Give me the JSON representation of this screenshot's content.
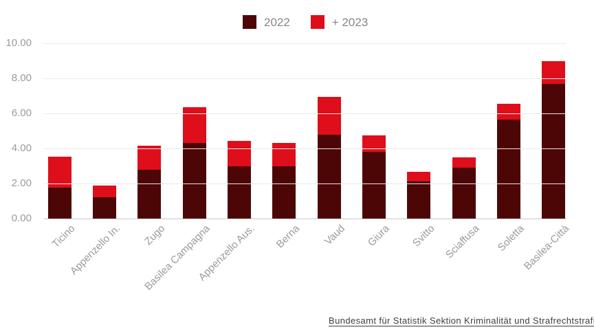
{
  "colors": {
    "series_2022": "#4d0606",
    "series_2023": "#de0e1b",
    "gridline": "#e9e9e9",
    "baseline": "#c6c6c6",
    "axis_text": "#9a9a9a",
    "legend_text": "#868686",
    "footer_text": "#3d3d3d"
  },
  "legend": {
    "items": [
      {
        "label": "2022",
        "color": "#4d0606"
      },
      {
        "label": "+ 2023",
        "color": "#de0e1b"
      }
    ]
  },
  "chart_data": {
    "type": "bar",
    "stacked": true,
    "title": "",
    "xlabel": "",
    "ylabel": "",
    "ylim": [
      0,
      10
    ],
    "grid": true,
    "legend_position": "top-center",
    "yticks": [
      "0.00",
      "2.00",
      "4.00",
      "6.00",
      "8.00",
      "10.00"
    ],
    "categories": [
      "Ticino",
      "Appenzello In.",
      "Zugo",
      "Basilea Campagna",
      "Appenzello Aus.",
      "Berna",
      "Vaud",
      "Giura",
      "Svitto",
      "Sciaffusa",
      "Soletta",
      "Basilea-Città"
    ],
    "series": [
      {
        "name": "2022",
        "color": "#4d0606",
        "values": [
          1.75,
          1.2,
          2.8,
          4.3,
          3.0,
          3.0,
          4.8,
          3.8,
          2.1,
          2.9,
          5.65,
          7.7
        ]
      },
      {
        "name": "+ 2023",
        "color": "#de0e1b",
        "values": [
          1.8,
          0.7,
          1.35,
          2.05,
          1.45,
          1.3,
          2.15,
          0.95,
          0.55,
          0.6,
          0.9,
          1.3
        ]
      }
    ],
    "totals": [
      3.55,
      1.9,
      4.15,
      6.35,
      4.45,
      4.3,
      6.95,
      4.75,
      2.65,
      3.5,
      6.55,
      9.0
    ]
  },
  "footer": {
    "source_link": "Bundesamt für Statistik Sektion Kriminalität und Strafrechtstrafre"
  }
}
